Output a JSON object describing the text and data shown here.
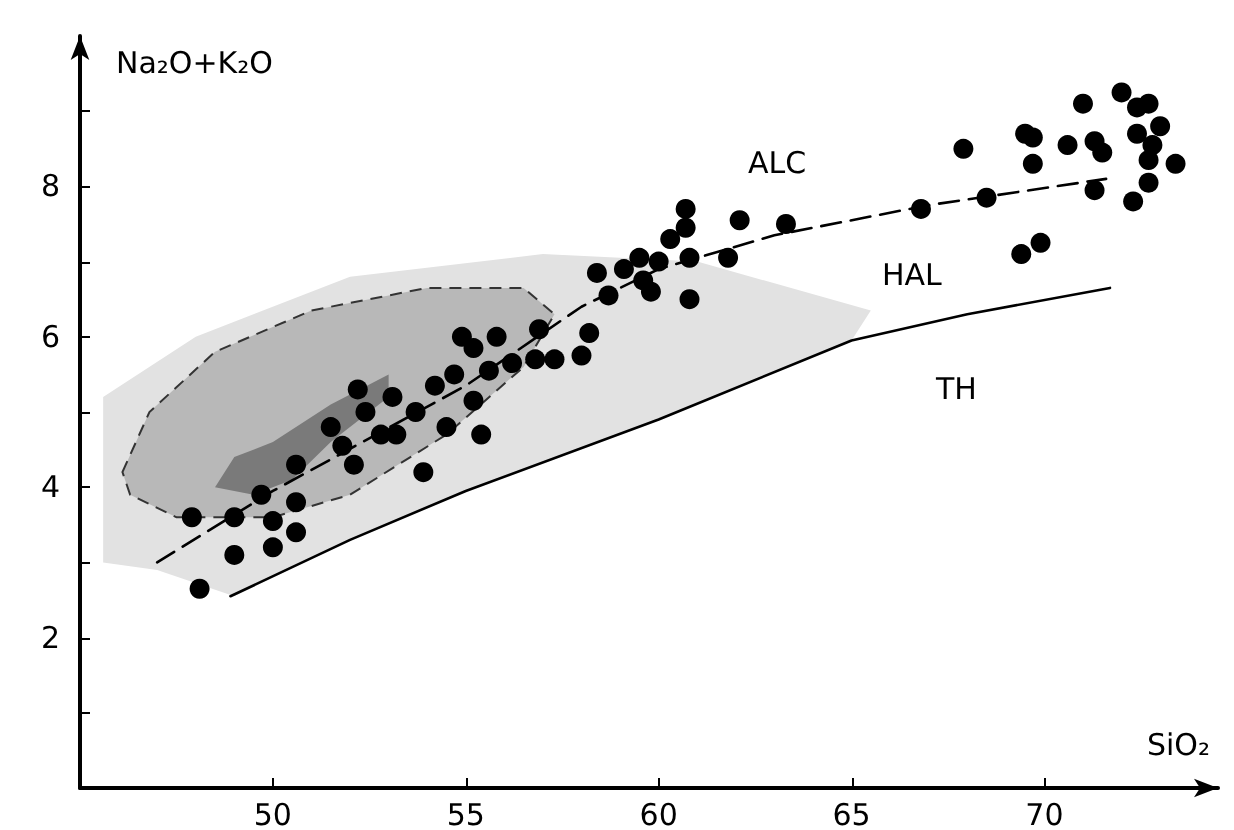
{
  "chart_data": {
    "type": "scatter",
    "xlabel": "SiO₂",
    "ylabel": "Na₂O+K₂O",
    "xlim": [
      45,
      74.5
    ],
    "ylim": [
      0,
      10
    ],
    "xticks": [
      50,
      55,
      60,
      65,
      70
    ],
    "yticks": [
      {
        "value": 1,
        "label": null
      },
      2,
      {
        "value": 3,
        "label": null
      },
      4,
      {
        "value": 5,
        "label": null
      },
      6,
      {
        "value": 7,
        "label": null
      },
      8,
      {
        "value": 9,
        "label": null
      }
    ],
    "grid": false,
    "annotations": [
      "ALC",
      "HAL",
      "TH"
    ],
    "series": [
      {
        "type": "area",
        "color": "#e2e2e2",
        "x": [
          45.6,
          45.6,
          48,
          52,
          57,
          61,
          65.5,
          65,
          60,
          55,
          52,
          49,
          47
        ],
        "values": [
          3.0,
          5.2,
          6.0,
          6.8,
          7.1,
          7.0,
          6.35,
          5.95,
          4.9,
          3.95,
          3.3,
          2.55,
          2.9
        ]
      },
      {
        "type": "area",
        "color": "#b8b8b8",
        "line_style": "dashed",
        "x": [
          46.1,
          46.8,
          48.5,
          51,
          54,
          56.5,
          57.3,
          56.5,
          54.5,
          52,
          50,
          47.5,
          46.3
        ],
        "values": [
          4.2,
          5.0,
          5.8,
          6.35,
          6.65,
          6.65,
          6.3,
          5.6,
          4.7,
          3.9,
          3.6,
          3.6,
          3.9
        ]
      },
      {
        "type": "area",
        "color": "#7a7a7a",
        "x": [
          48.5,
          49,
          50,
          51.5,
          53,
          53,
          51.5,
          50.5,
          49.5
        ],
        "values": [
          4.0,
          4.4,
          4.6,
          5.1,
          5.5,
          5.2,
          4.6,
          4.1,
          3.9
        ]
      },
      {
        "type": "line",
        "color": "#000000",
        "line_style": "dashed",
        "marker": "none",
        "x": [
          47,
          50,
          55,
          58,
          60,
          63,
          67,
          71.6
        ],
        "values": [
          3.0,
          3.95,
          5.35,
          6.4,
          6.9,
          7.35,
          7.75,
          8.1
        ]
      },
      {
        "type": "line",
        "color": "#000000",
        "line_style": "solid",
        "marker": "none",
        "x": [
          48.9,
          52,
          55,
          60,
          65,
          68,
          71.7
        ],
        "values": [
          2.55,
          3.3,
          3.95,
          4.9,
          5.95,
          6.3,
          6.65
        ]
      },
      {
        "color": "#000000",
        "marker": "circle",
        "x": [
          47.9,
          48.1,
          49.0,
          49.0,
          49.7,
          50.0,
          50.0,
          50.6,
          50.6,
          50.6,
          51.5,
          51.8,
          52.2,
          52.4,
          52.1,
          52.8,
          53.1,
          53.2,
          53.7,
          53.9,
          54.2,
          54.5,
          54.7,
          54.9,
          55.2,
          55.2,
          55.4,
          55.8,
          55.6,
          56.2,
          56.8,
          57.3,
          56.9,
          58.0,
          58.2,
          58.4,
          58.7,
          59.1,
          59.5,
          59.6,
          59.8,
          60.0,
          60.3,
          60.7,
          60.7,
          60.8,
          60.8,
          61.8,
          62.1,
          63.3,
          66.8,
          67.9,
          68.5,
          69.4,
          69.9,
          69.5,
          69.7,
          69.7,
          70.6,
          71.0,
          71.3,
          71.5,
          71.3,
          72.0,
          72.4,
          72.7,
          72.4,
          73.0,
          72.8,
          72.7,
          72.7,
          72.3,
          73.4
        ],
        "values": [
          3.6,
          2.65,
          3.6,
          3.1,
          3.9,
          3.55,
          3.2,
          3.8,
          3.4,
          4.3,
          4.8,
          4.55,
          5.3,
          5.0,
          4.3,
          4.7,
          5.2,
          4.7,
          5.0,
          4.2,
          5.35,
          4.8,
          5.5,
          6.0,
          5.85,
          5.15,
          4.7,
          6.0,
          5.55,
          5.65,
          5.7,
          5.7,
          6.1,
          5.75,
          6.05,
          6.85,
          6.55,
          6.9,
          7.05,
          6.75,
          6.6,
          7.0,
          7.3,
          7.7,
          7.45,
          7.05,
          6.5,
          7.05,
          7.55,
          7.5,
          7.7,
          8.5,
          7.85,
          7.1,
          7.25,
          8.7,
          8.65,
          8.3,
          8.55,
          9.1,
          8.6,
          8.45,
          7.95,
          9.25,
          9.05,
          9.1,
          8.7,
          8.8,
          8.55,
          8.35,
          8.05,
          7.8,
          8.3
        ]
      }
    ]
  }
}
